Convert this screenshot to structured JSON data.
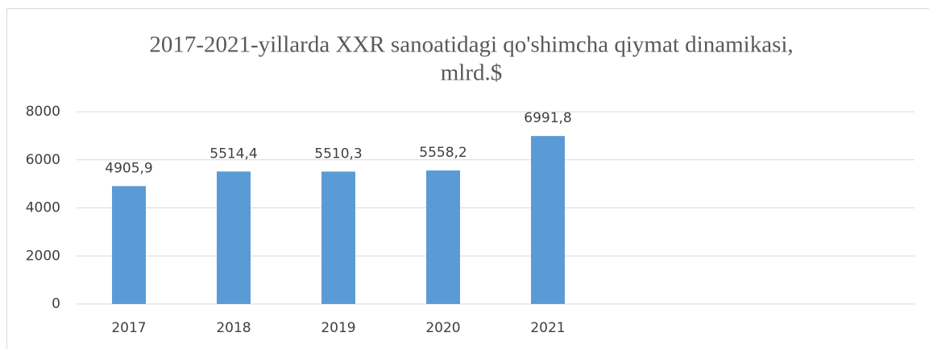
{
  "chart_data": {
    "type": "bar",
    "title": [
      "2017-2021-yillarda XXR sanoatidagi qo'shimcha qiymat dinamikasi,",
      "mlrd.$"
    ],
    "categories": [
      "2017",
      "2018",
      "2019",
      "2020",
      "2021",
      null,
      null,
      null
    ],
    "values": [
      4905.9,
      5514.4,
      5510.3,
      5558.2,
      6991.8,
      null,
      null,
      null
    ],
    "value_labels": [
      "4905,9",
      "5514,4",
      "5510,3",
      "5558,2",
      "6991,8",
      null,
      null,
      null
    ],
    "color": "#5b9bd5",
    "ylim": [
      0,
      8000
    ],
    "yticks": [
      0,
      2000,
      4000,
      6000,
      8000
    ],
    "grid": true
  }
}
